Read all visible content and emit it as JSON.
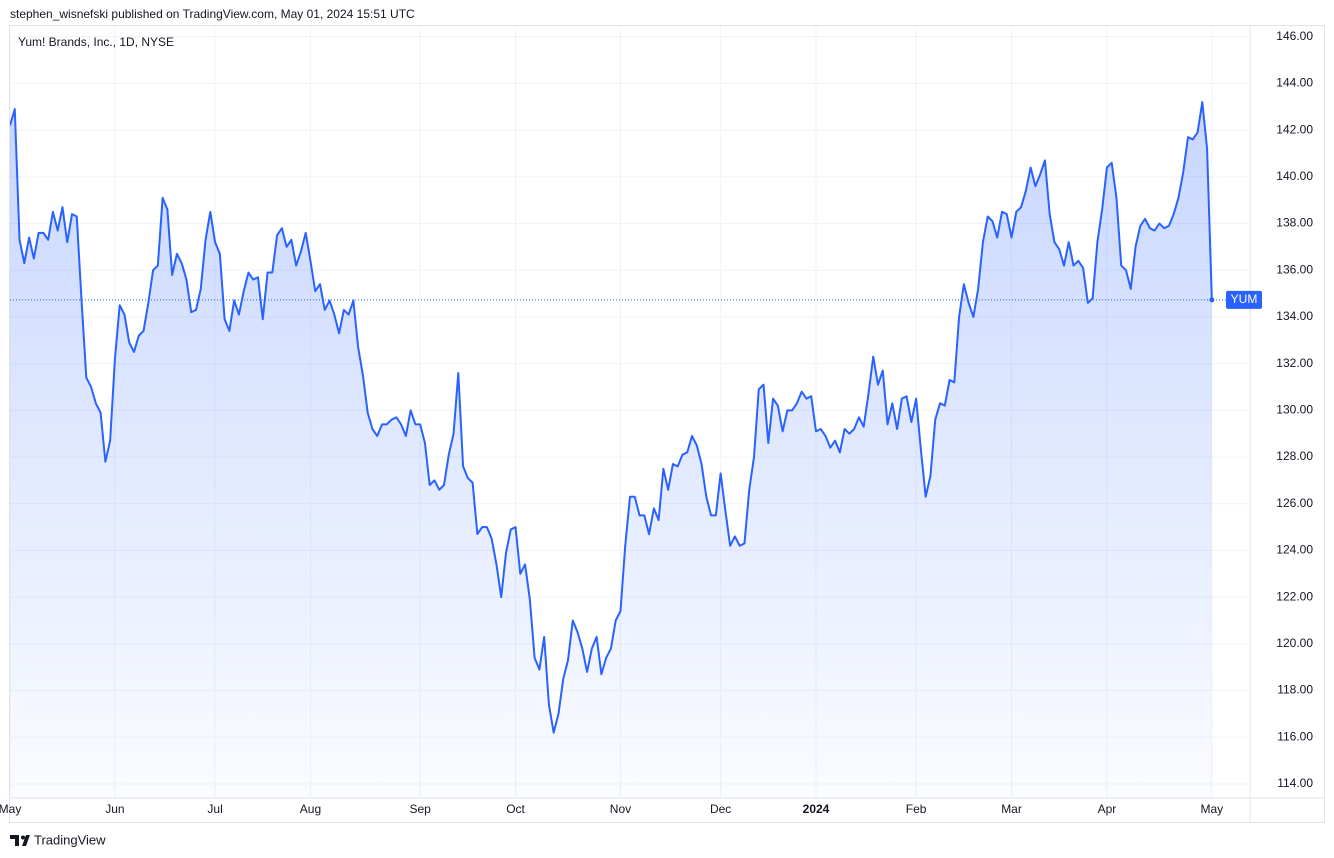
{
  "header": {
    "text": "stephen_wisnefski published on TradingView.com, May 01, 2024 15:51 UTC"
  },
  "footer": {
    "brand": "TradingView"
  },
  "chart_data": {
    "type": "line",
    "title": "Yum! Brands, Inc., 1D, NYSE",
    "series": [
      {
        "name": "YUM",
        "color": "#2962ff",
        "values": [
          142.2,
          142.9,
          137.3,
          136.3,
          137.4,
          136.5,
          137.6,
          137.6,
          137.3,
          138.5,
          137.7,
          138.7,
          137.2,
          138.4,
          138.3,
          134.7,
          131.4,
          131.0,
          130.3,
          129.9,
          127.8,
          128.7,
          132.2,
          134.5,
          134.1,
          132.9,
          132.5,
          133.2,
          133.4,
          134.6,
          136.0,
          136.2,
          139.1,
          138.6,
          135.8,
          136.7,
          136.3,
          135.6,
          134.2,
          134.3,
          135.2,
          137.3,
          138.5,
          137.2,
          136.7,
          133.9,
          133.4,
          134.7,
          134.1,
          135.1,
          135.9,
          135.6,
          135.7,
          133.9,
          135.9,
          135.9,
          137.5,
          137.8,
          137.0,
          137.3,
          136.2,
          136.8,
          137.6,
          136.4,
          135.1,
          135.4,
          134.3,
          134.7,
          134.1,
          133.3,
          134.3,
          134.1,
          134.7,
          132.7,
          131.5,
          129.9,
          129.2,
          128.9,
          129.4,
          129.4,
          129.6,
          129.7,
          129.4,
          128.9,
          130.0,
          129.4,
          129.4,
          128.6,
          126.8,
          127.0,
          126.6,
          126.8,
          128.1,
          129.0,
          131.6,
          127.6,
          127.1,
          126.9,
          124.7,
          125.0,
          125.0,
          124.5,
          123.4,
          122.0,
          123.9,
          124.9,
          125.0,
          123.0,
          123.4,
          121.9,
          119.4,
          118.9,
          120.3,
          117.4,
          116.2,
          117.0,
          118.5,
          119.3,
          121.0,
          120.5,
          119.8,
          118.8,
          119.8,
          120.3,
          118.7,
          119.4,
          119.8,
          121.0,
          121.4,
          124.2,
          126.3,
          126.3,
          125.5,
          125.5,
          124.7,
          125.8,
          125.3,
          127.5,
          126.6,
          127.7,
          127.6,
          128.1,
          128.2,
          128.9,
          128.5,
          127.7,
          126.3,
          125.5,
          125.5,
          127.3,
          125.7,
          124.2,
          124.6,
          124.2,
          124.3,
          126.6,
          128.0,
          130.9,
          131.1,
          128.6,
          130.5,
          130.2,
          129.1,
          130.0,
          130.0,
          130.3,
          130.8,
          130.5,
          130.6,
          129.1,
          129.2,
          128.9,
          128.4,
          128.7,
          128.2,
          129.2,
          129.0,
          129.2,
          129.7,
          129.3,
          130.7,
          132.3,
          131.1,
          131.7,
          129.4,
          130.3,
          129.2,
          130.5,
          130.6,
          129.5,
          130.5,
          128.3,
          126.3,
          127.2,
          129.6,
          130.3,
          130.2,
          131.3,
          131.2,
          134.0,
          135.4,
          134.6,
          134.0,
          135.2,
          137.2,
          138.3,
          138.1,
          137.4,
          138.5,
          138.4,
          137.4,
          138.5,
          138.7,
          139.4,
          140.4,
          139.6,
          140.1,
          140.7,
          138.4,
          137.2,
          136.9,
          136.2,
          137.2,
          136.2,
          136.4,
          136.1,
          134.6,
          134.8,
          137.2,
          138.6,
          140.4,
          140.6,
          139.1,
          136.2,
          136.0,
          135.2,
          137.0,
          137.9,
          138.2,
          137.8,
          137.7,
          138.0,
          137.8,
          137.9,
          138.4,
          139.1,
          140.2,
          141.7,
          141.6,
          141.9,
          143.2,
          141.2,
          134.73
        ]
      }
    ],
    "xlim": [
      0,
      260
    ],
    "xticks": [
      {
        "value": 0,
        "label": "May"
      },
      {
        "value": 22,
        "label": "Jun"
      },
      {
        "value": 43,
        "label": "Jul"
      },
      {
        "value": 63,
        "label": "Aug"
      },
      {
        "value": 86,
        "label": "Sep"
      },
      {
        "value": 106,
        "label": "Oct"
      },
      {
        "value": 128,
        "label": "Nov"
      },
      {
        "value": 149,
        "label": "Dec"
      },
      {
        "value": 169,
        "label": "2024"
      },
      {
        "value": 190,
        "label": "Feb"
      },
      {
        "value": 210,
        "label": "Mar"
      },
      {
        "value": 230,
        "label": "Apr"
      },
      {
        "value": 252,
        "label": "May"
      }
    ],
    "ylim": [
      113.4,
      146.5
    ],
    "yticks": [
      {
        "value": 114,
        "label": "114.00"
      },
      {
        "value": 116,
        "label": "116.00"
      },
      {
        "value": 118,
        "label": "118.00"
      },
      {
        "value": 120,
        "label": "120.00"
      },
      {
        "value": 122,
        "label": "122.00"
      },
      {
        "value": 124,
        "label": "124.00"
      },
      {
        "value": 126,
        "label": "126.00"
      },
      {
        "value": 128,
        "label": "128.00"
      },
      {
        "value": 130,
        "label": "130.00"
      },
      {
        "value": 132,
        "label": "132.00"
      },
      {
        "value": 134,
        "label": "134.00"
      },
      {
        "value": 136,
        "label": "136.00"
      },
      {
        "value": 138,
        "label": "138.00"
      },
      {
        "value": 140,
        "label": "140.00"
      },
      {
        "value": 142,
        "label": "142.00"
      },
      {
        "value": 144,
        "label": "144.00"
      },
      {
        "value": 146,
        "label": "146.00"
      }
    ],
    "grid": true
  }
}
